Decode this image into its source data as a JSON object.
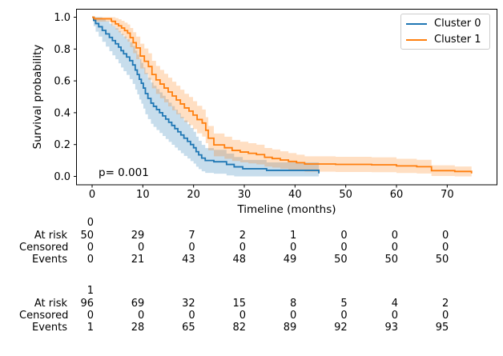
{
  "plot": {
    "ylabel": "Survival probability",
    "xlabel": "Timeline (months)",
    "pvalue_text": "p= 0.001"
  },
  "chart_data": {
    "type": "line",
    "subtype": "kaplan-meier-step-with-confidence-bands",
    "title": "",
    "xlabel": "Timeline (months)",
    "ylabel": "Survival probability",
    "annotation": "p= 0.001",
    "legend_position": "upper right",
    "xlim": [
      -3,
      80
    ],
    "ylim": [
      -0.05,
      1.05
    ],
    "xticks": [
      0,
      10,
      20,
      30,
      40,
      50,
      60,
      70
    ],
    "ytick_labels": [
      "0.0",
      "0.2",
      "0.4",
      "0.6",
      "0.8",
      "1.0"
    ],
    "grid": false,
    "series": [
      {
        "name": "Cluster 0",
        "color": "#1f77b4",
        "steps": [
          [
            0,
            1.0
          ],
          [
            0.3,
            0.98
          ],
          [
            0.7,
            0.96
          ],
          [
            1.3,
            0.94
          ],
          [
            2.0,
            0.917
          ],
          [
            2.7,
            0.895
          ],
          [
            3.4,
            0.873
          ],
          [
            4.0,
            0.853
          ],
          [
            4.6,
            0.833
          ],
          [
            5.2,
            0.812
          ],
          [
            5.7,
            0.79
          ],
          [
            6.2,
            0.77
          ],
          [
            6.8,
            0.75
          ],
          [
            7.4,
            0.727
          ],
          [
            8.0,
            0.7
          ],
          [
            8.5,
            0.668
          ],
          [
            8.9,
            0.64
          ],
          [
            9.3,
            0.61
          ],
          [
            9.7,
            0.585
          ],
          [
            10.1,
            0.555
          ],
          [
            10.5,
            0.52
          ],
          [
            11.0,
            0.49
          ],
          [
            11.6,
            0.46
          ],
          [
            12.1,
            0.44
          ],
          [
            12.7,
            0.42
          ],
          [
            13.3,
            0.4
          ],
          [
            13.9,
            0.38
          ],
          [
            14.5,
            0.36
          ],
          [
            15.1,
            0.34
          ],
          [
            15.7,
            0.32
          ],
          [
            16.3,
            0.3
          ],
          [
            16.9,
            0.28
          ],
          [
            17.5,
            0.26
          ],
          [
            18.1,
            0.24
          ],
          [
            18.8,
            0.22
          ],
          [
            19.4,
            0.2
          ],
          [
            20.0,
            0.18
          ],
          [
            20.5,
            0.155
          ],
          [
            21.0,
            0.135
          ],
          [
            21.6,
            0.115
          ],
          [
            22.3,
            0.1
          ],
          [
            24.0,
            0.092
          ],
          [
            26.5,
            0.075
          ],
          [
            28.0,
            0.06
          ],
          [
            29.7,
            0.048
          ],
          [
            34.4,
            0.038
          ],
          [
            44.7,
            0.019
          ]
        ]
      },
      {
        "name": "Cluster 1",
        "color": "#ff7f0e",
        "steps": [
          [
            0,
            1.0
          ],
          [
            0.4,
            0.99
          ],
          [
            3.8,
            0.974
          ],
          [
            4.6,
            0.958
          ],
          [
            5.2,
            0.946
          ],
          [
            5.8,
            0.932
          ],
          [
            6.4,
            0.916
          ],
          [
            7.0,
            0.9
          ],
          [
            7.5,
            0.872
          ],
          [
            8.1,
            0.84
          ],
          [
            8.7,
            0.807
          ],
          [
            9.5,
            0.756
          ],
          [
            10.3,
            0.723
          ],
          [
            11.1,
            0.69
          ],
          [
            11.8,
            0.64
          ],
          [
            12.6,
            0.606
          ],
          [
            13.4,
            0.58
          ],
          [
            14.2,
            0.555
          ],
          [
            15.0,
            0.53
          ],
          [
            15.8,
            0.505
          ],
          [
            16.6,
            0.48
          ],
          [
            17.4,
            0.455
          ],
          [
            18.2,
            0.43
          ],
          [
            19.1,
            0.41
          ],
          [
            19.9,
            0.385
          ],
          [
            20.7,
            0.357
          ],
          [
            21.7,
            0.335
          ],
          [
            22.4,
            0.29
          ],
          [
            22.9,
            0.24
          ],
          [
            24.0,
            0.198
          ],
          [
            26.1,
            0.18
          ],
          [
            27.6,
            0.163
          ],
          [
            29.2,
            0.153
          ],
          [
            30.8,
            0.145
          ],
          [
            32.4,
            0.137
          ],
          [
            34.0,
            0.12
          ],
          [
            35.5,
            0.112
          ],
          [
            37.1,
            0.103
          ],
          [
            38.7,
            0.094
          ],
          [
            40.3,
            0.086
          ],
          [
            41.9,
            0.078
          ],
          [
            48.0,
            0.0755
          ],
          [
            55.1,
            0.073
          ],
          [
            60.0,
            0.066
          ],
          [
            64.0,
            0.061
          ],
          [
            66.9,
            0.036
          ],
          [
            71.5,
            0.031
          ],
          [
            74.8,
            0.019
          ]
        ]
      }
    ]
  },
  "risk_table": {
    "columns": [
      0,
      10,
      20,
      30,
      40,
      50,
      60,
      70
    ],
    "row_labels": [
      "At risk",
      "Censored",
      "Events"
    ],
    "groups": [
      {
        "label": "0",
        "at_risk": [
          50,
          29,
          7,
          2,
          1,
          0,
          0,
          0
        ],
        "censored": [
          0,
          0,
          0,
          0,
          0,
          0,
          0,
          0
        ],
        "events": [
          0,
          21,
          43,
          48,
          49,
          50,
          50,
          50
        ]
      },
      {
        "label": "1",
        "at_risk": [
          96,
          69,
          32,
          15,
          8,
          5,
          4,
          2
        ],
        "censored": [
          0,
          0,
          0,
          0,
          0,
          0,
          0,
          0
        ],
        "events": [
          1,
          28,
          65,
          82,
          89,
          92,
          93,
          95
        ]
      }
    ]
  }
}
